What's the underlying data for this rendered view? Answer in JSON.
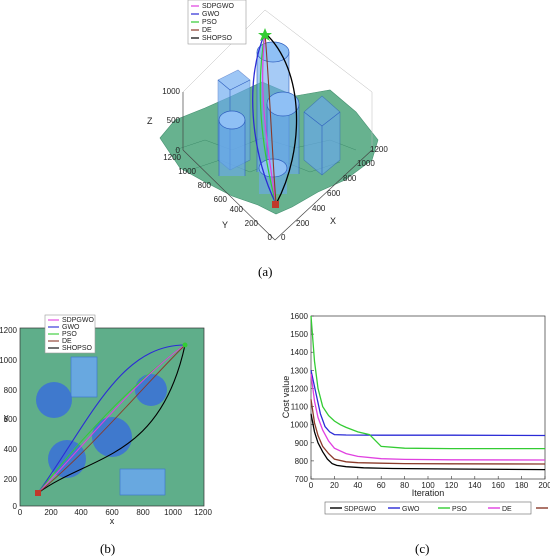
{
  "panels": {
    "a": {
      "caption": "(a)",
      "legend": [
        "SDPGWO",
        "GWO",
        "PSO",
        "DE",
        "SHOPSO"
      ],
      "zlabel": "Z",
      "xlabel": "X",
      "ylabel": "Y",
      "zticks": [
        "0",
        "500",
        "1000"
      ],
      "xticks": [
        "0",
        "200",
        "400",
        "600",
        "800",
        "1000",
        "1200"
      ],
      "yticks": [
        "0",
        "200",
        "400",
        "600",
        "800",
        "1000",
        "1200"
      ]
    },
    "b": {
      "caption": "(b)",
      "legend": [
        "SDPGWO",
        "GWO",
        "PSO",
        "DE",
        "SHOPSO"
      ],
      "xlabel": "x",
      "ylabel": "y",
      "xticks": [
        "0",
        "200",
        "400",
        "600",
        "800",
        "1000",
        "1200"
      ],
      "yticks": [
        "0",
        "200",
        "400",
        "600",
        "800",
        "1000",
        "1200"
      ]
    },
    "c": {
      "caption": "(c)"
    }
  },
  "colors": {
    "SDPGWO": "#000000",
    "GWO": "#2b2bd6",
    "PSO": "#33cc33",
    "DE": "#e040e0",
    "SHOPSO": "#8a3a2a",
    "terrain": "#5fae8a",
    "obstacle_fill": "#6aa8f0",
    "obstacle_2d": "#3a70d8"
  },
  "chart_data": {
    "type": "line",
    "title": "",
    "xlabel": "Iteration",
    "ylabel": "Cost value",
    "xlim": [
      0,
      200
    ],
    "ylim": [
      700,
      1600
    ],
    "xticks": [
      0,
      20,
      40,
      60,
      80,
      100,
      120,
      140,
      160,
      180,
      200
    ],
    "yticks": [
      700,
      800,
      900,
      1000,
      1100,
      1200,
      1300,
      1400,
      1500,
      1600
    ],
    "legend_position": "bottom",
    "series": [
      {
        "name": "SDPGWO",
        "x": [
          0,
          3,
          6,
          10,
          14,
          18,
          22,
          30,
          45,
          70,
          120,
          200
        ],
        "values": [
          1060,
          960,
          900,
          850,
          810,
          785,
          775,
          768,
          762,
          758,
          755,
          752
        ]
      },
      {
        "name": "GWO",
        "x": [
          0,
          4,
          8,
          12,
          16,
          20,
          30,
          60,
          120,
          200
        ],
        "values": [
          1300,
          1180,
          1060,
          990,
          960,
          945,
          943,
          942,
          942,
          940
        ]
      },
      {
        "name": "PSO",
        "x": [
          0,
          3,
          6,
          10,
          15,
          20,
          25,
          30,
          40,
          50,
          60,
          80,
          120,
          200
        ],
        "values": [
          1600,
          1350,
          1200,
          1100,
          1050,
          1020,
          1000,
          985,
          960,
          945,
          880,
          870,
          868,
          868
        ]
      },
      {
        "name": "DE",
        "x": [
          0,
          3,
          6,
          10,
          15,
          20,
          30,
          40,
          60,
          80,
          120,
          200
        ],
        "values": [
          1280,
          1130,
          1040,
          970,
          910,
          870,
          840,
          825,
          812,
          808,
          806,
          805
        ]
      },
      {
        "name": "SHOPSO",
        "x": [
          0,
          3,
          6,
          10,
          15,
          20,
          30,
          40,
          60,
          80,
          120,
          200
        ],
        "values": [
          1140,
          1010,
          940,
          880,
          840,
          810,
          795,
          790,
          787,
          785,
          784,
          783
        ]
      }
    ]
  }
}
